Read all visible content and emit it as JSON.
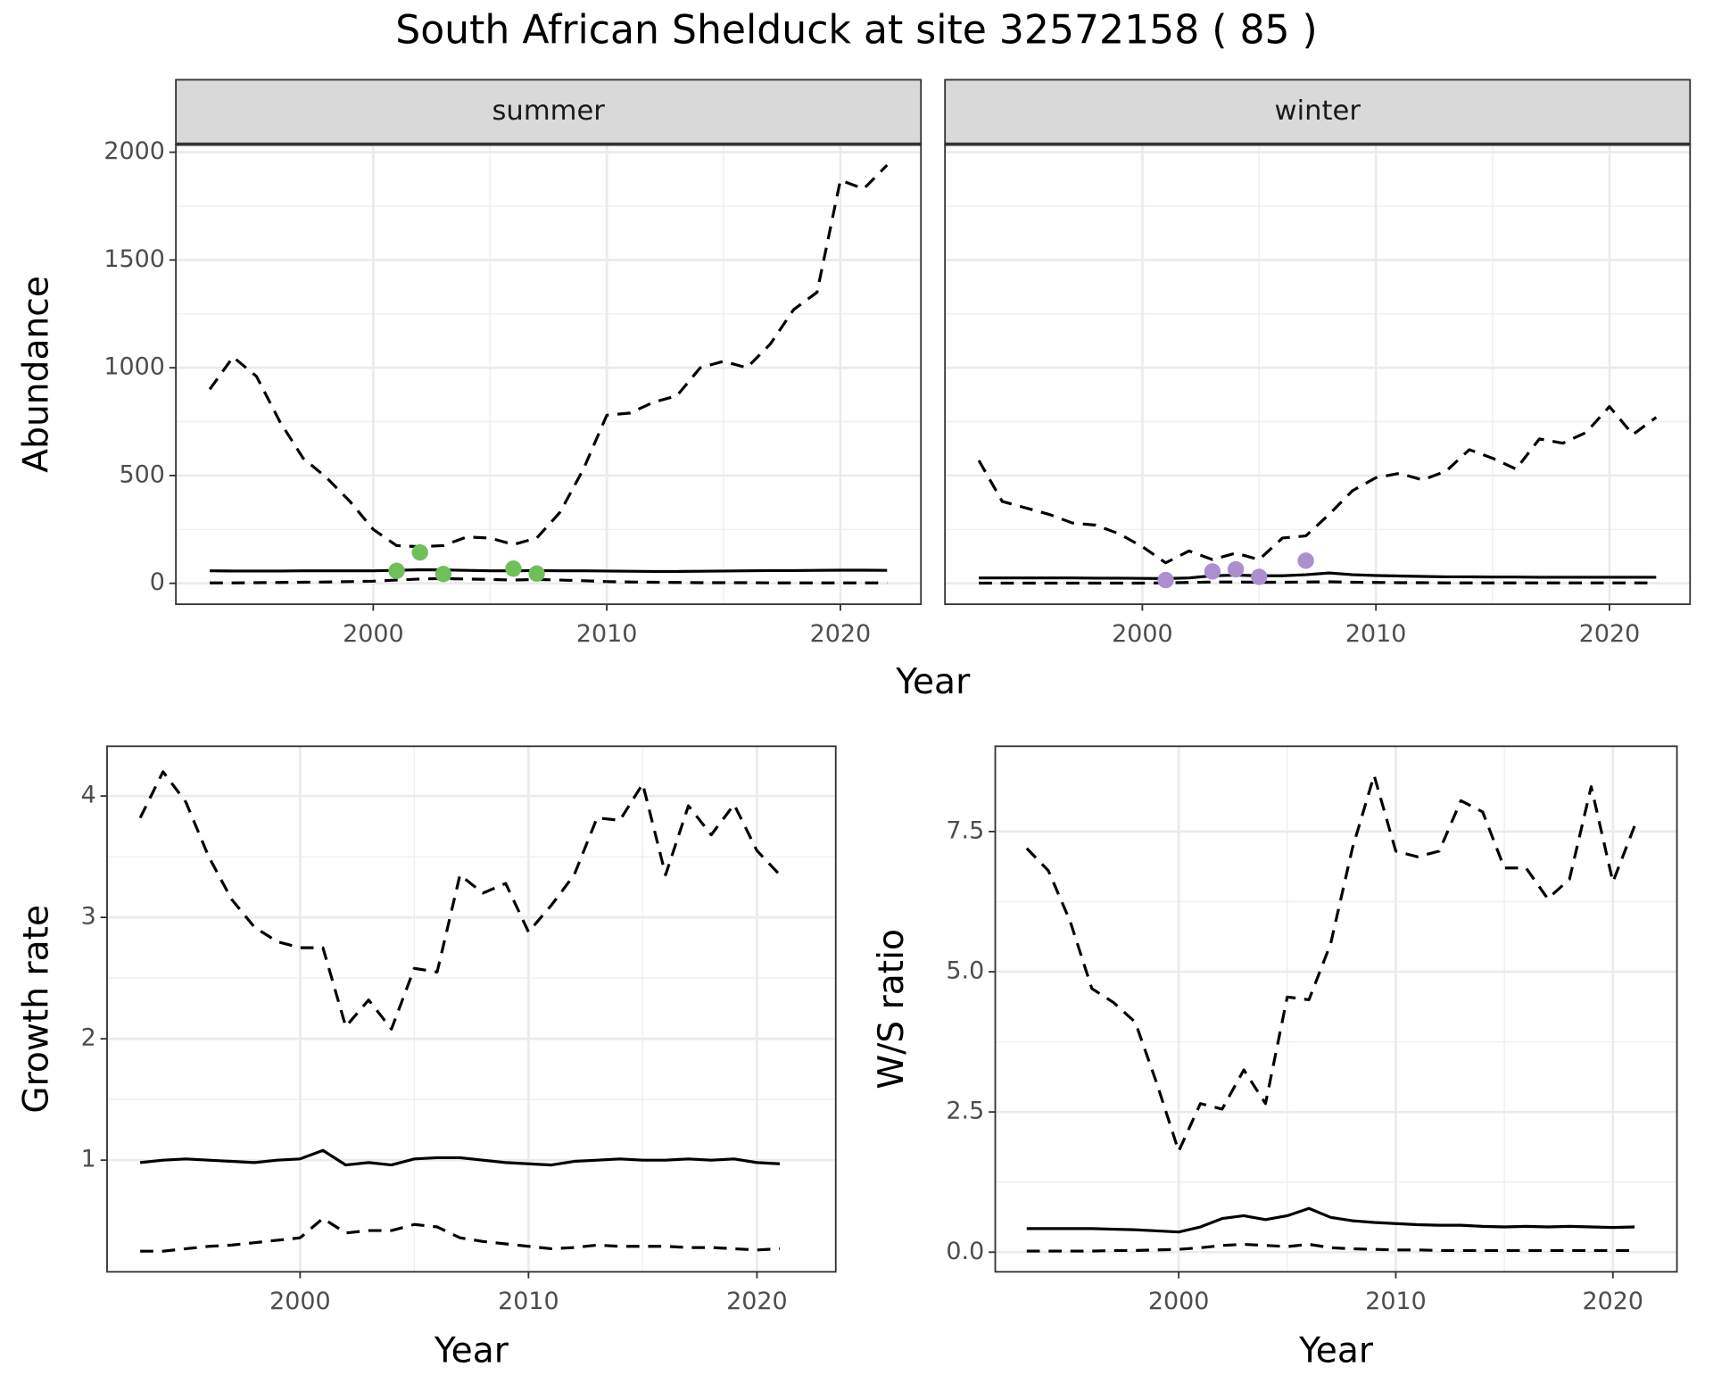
{
  "title": "South African Shelduck at site 32572158 ( 85 )",
  "chart_data": [
    {
      "type": "line",
      "facet": "summer",
      "xlabel": "Year",
      "ylabel": "Abundance",
      "x": [
        1993,
        1994,
        1995,
        1996,
        1997,
        1998,
        1999,
        2000,
        2001,
        2002,
        2003,
        2004,
        2005,
        2006,
        2007,
        2008,
        2009,
        2010,
        2011,
        2012,
        2013,
        2014,
        2015,
        2016,
        2017,
        2018,
        2019,
        2020,
        2021,
        2022
      ],
      "xlim": [
        1991.55,
        2023.45
      ],
      "xticks": [
        2000,
        2010,
        2020
      ],
      "ylim": [
        -97,
        2037
      ],
      "yticks": [
        0,
        500,
        1000,
        1500,
        2000
      ],
      "grid": true,
      "series": [
        {
          "color": "#000000",
          "dash": "dashed",
          "values": [
            900,
            1050,
            960,
            750,
            580,
            490,
            380,
            250,
            175,
            170,
            175,
            215,
            210,
            180,
            210,
            330,
            530,
            780,
            790,
            840,
            870,
            1000,
            1030,
            1000,
            1110,
            1270,
            1350,
            1870,
            1830,
            1940
          ]
        },
        {
          "color": "#000000",
          "dash": "solid",
          "values": [
            58,
            57,
            57,
            57,
            58,
            58,
            58,
            58,
            60,
            63,
            62,
            60,
            58,
            58,
            59,
            58,
            58,
            57,
            56,
            55,
            55,
            56,
            57,
            58,
            59,
            59,
            60,
            61,
            61,
            60
          ]
        },
        {
          "color": "#000000",
          "dash": "dashed",
          "values": [
            2,
            2,
            3,
            4,
            5,
            6,
            8,
            10,
            15,
            20,
            22,
            20,
            18,
            15,
            18,
            15,
            12,
            8,
            6,
            5,
            4,
            3,
            3,
            3,
            2,
            2,
            2,
            2,
            2,
            2
          ]
        },
        {
          "color": "#6fbf5a",
          "style": "points",
          "x": [
            2001,
            2002,
            2003,
            2006,
            2007
          ],
          "values": [
            58,
            143,
            43,
            68,
            45
          ]
        }
      ]
    },
    {
      "type": "line",
      "facet": "winter",
      "x": [
        1993,
        1994,
        1995,
        1996,
        1997,
        1998,
        1999,
        2000,
        2001,
        2002,
        2003,
        2004,
        2005,
        2006,
        2007,
        2008,
        2009,
        2010,
        2011,
        2012,
        2013,
        2014,
        2015,
        2016,
        2017,
        2018,
        2019,
        2020,
        2021,
        2022
      ],
      "xlim": [
        1991.55,
        2023.45
      ],
      "xticks": [
        2000,
        2010,
        2020
      ],
      "ylim": [
        -97,
        2037
      ],
      "yticks": [
        0,
        500,
        1000,
        1500,
        2000
      ],
      "grid": true,
      "series": [
        {
          "color": "#000000",
          "dash": "dashed",
          "values": [
            570,
            380,
            350,
            320,
            280,
            270,
            230,
            170,
            95,
            150,
            110,
            140,
            110,
            210,
            220,
            320,
            430,
            490,
            510,
            480,
            520,
            620,
            580,
            530,
            670,
            650,
            700,
            820,
            690,
            770
          ]
        },
        {
          "color": "#000000",
          "dash": "solid",
          "values": [
            25,
            25,
            25,
            25,
            25,
            24,
            24,
            23,
            22,
            25,
            35,
            38,
            35,
            35,
            40,
            48,
            40,
            36,
            34,
            32,
            30,
            30,
            29,
            29,
            28,
            28,
            28,
            28,
            28,
            28
          ]
        },
        {
          "color": "#000000",
          "dash": "dashed",
          "values": [
            1,
            1,
            1,
            1,
            1,
            1,
            1,
            1,
            2,
            4,
            6,
            6,
            5,
            5,
            6,
            7,
            5,
            4,
            3,
            3,
            2,
            2,
            2,
            2,
            2,
            2,
            2,
            2,
            2,
            2
          ]
        },
        {
          "color": "#ab8fcf",
          "style": "points",
          "x": [
            2001,
            2003,
            2004,
            2005,
            2007
          ],
          "values": [
            15,
            55,
            65,
            30,
            105
          ]
        }
      ]
    },
    {
      "type": "line",
      "xlabel": "Year",
      "ylabel": "Growth rate",
      "x": [
        1993,
        1994,
        1995,
        1996,
        1997,
        1998,
        1999,
        2000,
        2001,
        2002,
        2003,
        2004,
        2005,
        2006,
        2007,
        2008,
        2009,
        2010,
        2011,
        2012,
        2013,
        2014,
        2015,
        2016,
        2017,
        2018,
        2019,
        2020,
        2021
      ],
      "xlim": [
        1991.55,
        2023.45
      ],
      "xticks": [
        2000,
        2010,
        2020
      ],
      "ylim": [
        0.08,
        4.41
      ],
      "yticks": [
        1,
        2,
        3,
        4
      ],
      "grid": true,
      "series": [
        {
          "color": "#000000",
          "dash": "dashed",
          "values": [
            3.82,
            4.2,
            3.95,
            3.5,
            3.15,
            2.92,
            2.8,
            2.75,
            2.75,
            2.1,
            2.32,
            2.08,
            2.58,
            2.55,
            3.35,
            3.2,
            3.28,
            2.88,
            3.1,
            3.35,
            3.82,
            3.8,
            4.1,
            3.35,
            3.92,
            3.68,
            3.93,
            3.55,
            3.35
          ]
        },
        {
          "color": "#000000",
          "dash": "solid",
          "values": [
            0.98,
            1.0,
            1.01,
            1.0,
            0.99,
            0.98,
            1.0,
            1.01,
            1.08,
            0.96,
            0.98,
            0.96,
            1.01,
            1.02,
            1.02,
            1.0,
            0.98,
            0.97,
            0.96,
            0.99,
            1.0,
            1.01,
            1.0,
            1.0,
            1.01,
            1.0,
            1.01,
            0.98,
            0.97
          ]
        },
        {
          "color": "#000000",
          "dash": "dashed",
          "values": [
            0.25,
            0.25,
            0.27,
            0.29,
            0.3,
            0.32,
            0.34,
            0.36,
            0.52,
            0.4,
            0.42,
            0.42,
            0.47,
            0.45,
            0.36,
            0.33,
            0.31,
            0.29,
            0.27,
            0.28,
            0.3,
            0.29,
            0.29,
            0.29,
            0.28,
            0.28,
            0.27,
            0.26,
            0.27
          ]
        }
      ]
    },
    {
      "type": "line",
      "xlabel": "Year",
      "ylabel": "W/S ratio",
      "x": [
        1993,
        1994,
        1995,
        1996,
        1997,
        1998,
        1999,
        2000,
        2001,
        2002,
        2003,
        2004,
        2005,
        2006,
        2007,
        2008,
        2009,
        2010,
        2011,
        2012,
        2013,
        2014,
        2015,
        2016,
        2017,
        2018,
        2019,
        2020,
        2021
      ],
      "xlim": [
        1991.55,
        2022.95
      ],
      "xticks": [
        2000,
        2010,
        2020
      ],
      "ylim": [
        -0.35,
        9.02
      ],
      "yticks": [
        {
          "value": 0,
          "label": "0.0"
        },
        {
          "value": 2.5,
          "label": "2.5"
        },
        {
          "value": 5,
          "label": "5.0"
        },
        {
          "value": 7.5,
          "label": "7.5"
        }
      ],
      "grid": true,
      "series": [
        {
          "color": "#000000",
          "dash": "dashed",
          "values": [
            7.2,
            6.8,
            5.9,
            4.7,
            4.45,
            4.1,
            3.0,
            1.8,
            2.65,
            2.55,
            3.25,
            2.65,
            4.55,
            4.5,
            5.5,
            7.2,
            8.5,
            7.15,
            7.05,
            7.15,
            8.05,
            7.85,
            6.85,
            6.85,
            6.3,
            6.65,
            8.3,
            6.6,
            7.6
          ]
        },
        {
          "color": "#000000",
          "dash": "solid",
          "values": [
            0.42,
            0.42,
            0.42,
            0.42,
            0.41,
            0.4,
            0.38,
            0.36,
            0.45,
            0.6,
            0.65,
            0.58,
            0.65,
            0.78,
            0.62,
            0.56,
            0.53,
            0.51,
            0.49,
            0.48,
            0.48,
            0.46,
            0.45,
            0.46,
            0.45,
            0.46,
            0.45,
            0.44,
            0.45
          ]
        },
        {
          "color": "#000000",
          "dash": "dashed",
          "values": [
            0.02,
            0.02,
            0.02,
            0.02,
            0.03,
            0.03,
            0.04,
            0.05,
            0.08,
            0.12,
            0.14,
            0.12,
            0.1,
            0.14,
            0.08,
            0.06,
            0.05,
            0.04,
            0.04,
            0.03,
            0.03,
            0.03,
            0.03,
            0.03,
            0.03,
            0.03,
            0.03,
            0.03,
            0.03
          ]
        }
      ]
    }
  ]
}
